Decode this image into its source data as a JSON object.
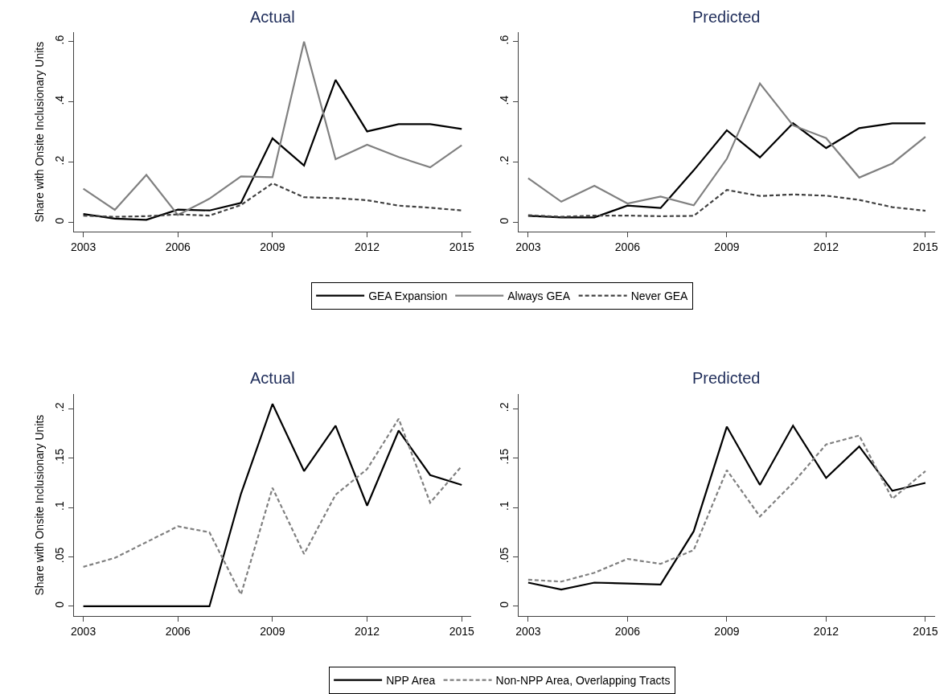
{
  "chart_data": [
    {
      "type": "line",
      "title": "Actual",
      "ylabel": "Share with Onsite Inclusionary Units",
      "x": [
        2003,
        2004,
        2005,
        2006,
        2007,
        2008,
        2009,
        2010,
        2011,
        2012,
        2013,
        2014,
        2015
      ],
      "xlim": [
        2002.7,
        2015.3
      ],
      "xticks": [
        2003,
        2006,
        2009,
        2012,
        2015
      ],
      "ylim": [
        -0.03,
        0.63
      ],
      "yticks": [
        0,
        {
          "value": 0.2,
          "label": ".2"
        },
        {
          "value": 0.4,
          "label": ".4"
        },
        {
          "value": 0.6,
          "label": ".6"
        }
      ],
      "legend": "bottom",
      "series": [
        {
          "name": "GEA Expansion",
          "color": "#000000",
          "line_style": "solid",
          "values": [
            0.028,
            0.013,
            0.009,
            0.043,
            0.04,
            0.065,
            0.279,
            0.189,
            0.473,
            0.302,
            0.326,
            0.326,
            0.31
          ]
        },
        {
          "name": "Always GEA",
          "color": "#808080",
          "line_style": "solid",
          "values": [
            0.112,
            0.042,
            0.158,
            0.025,
            0.079,
            0.153,
            0.15,
            0.6,
            0.21,
            0.258,
            0.217,
            0.183,
            0.256
          ]
        },
        {
          "name": "Never GEA",
          "color": "#404040",
          "line_style": "dashed",
          "values": [
            0.023,
            0.019,
            0.021,
            0.027,
            0.023,
            0.058,
            0.13,
            0.084,
            0.081,
            0.074,
            0.056,
            0.049,
            0.04
          ]
        }
      ]
    },
    {
      "type": "line",
      "title": "Predicted",
      "x": [
        2003,
        2004,
        2005,
        2006,
        2007,
        2008,
        2009,
        2010,
        2011,
        2012,
        2013,
        2014,
        2015
      ],
      "xlim": [
        2002.7,
        2015.3
      ],
      "xticks": [
        2003,
        2006,
        2009,
        2012,
        2015
      ],
      "ylim": [
        -0.03,
        0.63
      ],
      "yticks": [
        0,
        {
          "value": 0.2,
          "label": ".2"
        },
        {
          "value": 0.4,
          "label": ".4"
        },
        {
          "value": 0.6,
          "label": ".6"
        }
      ],
      "series": [
        {
          "color": "#000000",
          "line_style": "solid",
          "values": [
            0.022,
            0.017,
            0.017,
            0.056,
            0.048,
            0.173,
            0.306,
            0.216,
            0.329,
            0.247,
            0.313,
            0.329,
            0.329
          ]
        },
        {
          "color": "#808080",
          "line_style": "solid",
          "values": [
            0.147,
            0.069,
            0.122,
            0.063,
            0.086,
            0.057,
            0.211,
            0.461,
            0.322,
            0.28,
            0.149,
            0.196,
            0.284
          ]
        },
        {
          "color": "#404040",
          "line_style": "dashed",
          "values": [
            0.024,
            0.019,
            0.023,
            0.023,
            0.021,
            0.022,
            0.108,
            0.088,
            0.093,
            0.089,
            0.075,
            0.051,
            0.039
          ]
        }
      ]
    },
    {
      "type": "line",
      "title": "Actual",
      "ylabel": "Share with Onsite Inclusionary Units",
      "x": [
        2003,
        2004,
        2005,
        2006,
        2007,
        2008,
        2009,
        2010,
        2011,
        2012,
        2013,
        2014,
        2015
      ],
      "xlim": [
        2002.7,
        2015.3
      ],
      "xticks": [
        2003,
        2006,
        2009,
        2012,
        2015
      ],
      "ylim": [
        -0.01,
        0.215
      ],
      "yticks": [
        0,
        {
          "value": 0.05,
          "label": ".05"
        },
        {
          "value": 0.1,
          "label": ".1"
        },
        {
          "value": 0.15,
          "label": ".15"
        },
        {
          "value": 0.2,
          "label": ".2"
        }
      ],
      "legend": "bottom",
      "series": [
        {
          "name": "NPP Area",
          "color": "#000000",
          "line_style": "solid",
          "values": [
            0,
            0,
            0,
            0,
            0,
            0.114,
            0.205,
            0.137,
            0.183,
            0.102,
            0.178,
            0.133,
            0.123
          ]
        },
        {
          "name": "Non-NPP Area, Overlapping Tracts",
          "color": "#808080",
          "line_style": "dashed",
          "values": [
            0.04,
            0.049,
            0.065,
            0.081,
            0.075,
            0.012,
            0.12,
            0.053,
            0.113,
            0.139,
            0.19,
            0.105,
            0.142
          ]
        }
      ]
    },
    {
      "type": "line",
      "title": "Predicted",
      "x": [
        2003,
        2004,
        2005,
        2006,
        2007,
        2008,
        2009,
        2010,
        2011,
        2012,
        2013,
        2014,
        2015
      ],
      "xlim": [
        2002.7,
        2015.3
      ],
      "xticks": [
        2003,
        2006,
        2009,
        2012,
        2015
      ],
      "ylim": [
        -0.01,
        0.215
      ],
      "yticks": [
        0,
        {
          "value": 0.05,
          "label": ".05"
        },
        {
          "value": 0.1,
          "label": ".1"
        },
        {
          "value": 0.15,
          "label": ".15"
        },
        {
          "value": 0.2,
          "label": ".2"
        }
      ],
      "series": [
        {
          "color": "#000000",
          "line_style": "solid",
          "values": [
            0.024,
            0.017,
            0.024,
            0.023,
            0.022,
            0.076,
            0.182,
            0.123,
            0.183,
            0.13,
            0.162,
            0.117,
            0.125
          ]
        },
        {
          "color": "#808080",
          "line_style": "dashed",
          "values": [
            0.027,
            0.025,
            0.034,
            0.048,
            0.043,
            0.057,
            0.138,
            0.091,
            0.125,
            0.164,
            0.173,
            0.109,
            0.137
          ]
        }
      ]
    }
  ]
}
